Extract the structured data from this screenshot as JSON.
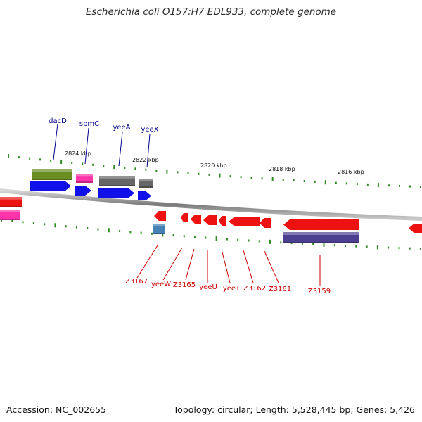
{
  "title": "Escherichia coli O157:H7 EDL933, complete genome",
  "footer": {
    "accession": "Accession: NC_002655",
    "topology": "Topology: circular; Length: 5,528,445 bp; Genes: 5,426"
  },
  "colors": {
    "background": "#ffffff",
    "top_gene_label": "#00008b",
    "bottom_gene_label": "#cc0000",
    "tick": "#2e8b22",
    "backbone": "#8c8c8c",
    "forward_cds": "#1010e8",
    "reverse_cds": "#ee1111",
    "olive_feature": "#6b8e23",
    "pink_feature": "#ff33aa",
    "gray_feature": "#666666",
    "steelblue_feature": "#4682b4",
    "slate_feature": "#4b3f8f"
  },
  "scale_labels": [
    {
      "label": "2824 kbp"
    },
    {
      "label": "2822 kbp"
    },
    {
      "label": "2820 kbp"
    },
    {
      "label": "2818 kbp"
    },
    {
      "label": "2816 kbp"
    }
  ],
  "top_genes": [
    {
      "name": "dacD"
    },
    {
      "name": "sbmC"
    },
    {
      "name": "yeeA"
    },
    {
      "name": "yeeX"
    }
  ],
  "bottom_genes": [
    {
      "name": "Z3167"
    },
    {
      "name": "yeeW"
    },
    {
      "name": "Z3165"
    },
    {
      "name": "yeeU"
    },
    {
      "name": "yeeT"
    },
    {
      "name": "Z3162"
    },
    {
      "name": "Z3161"
    },
    {
      "name": "Z3159"
    }
  ]
}
